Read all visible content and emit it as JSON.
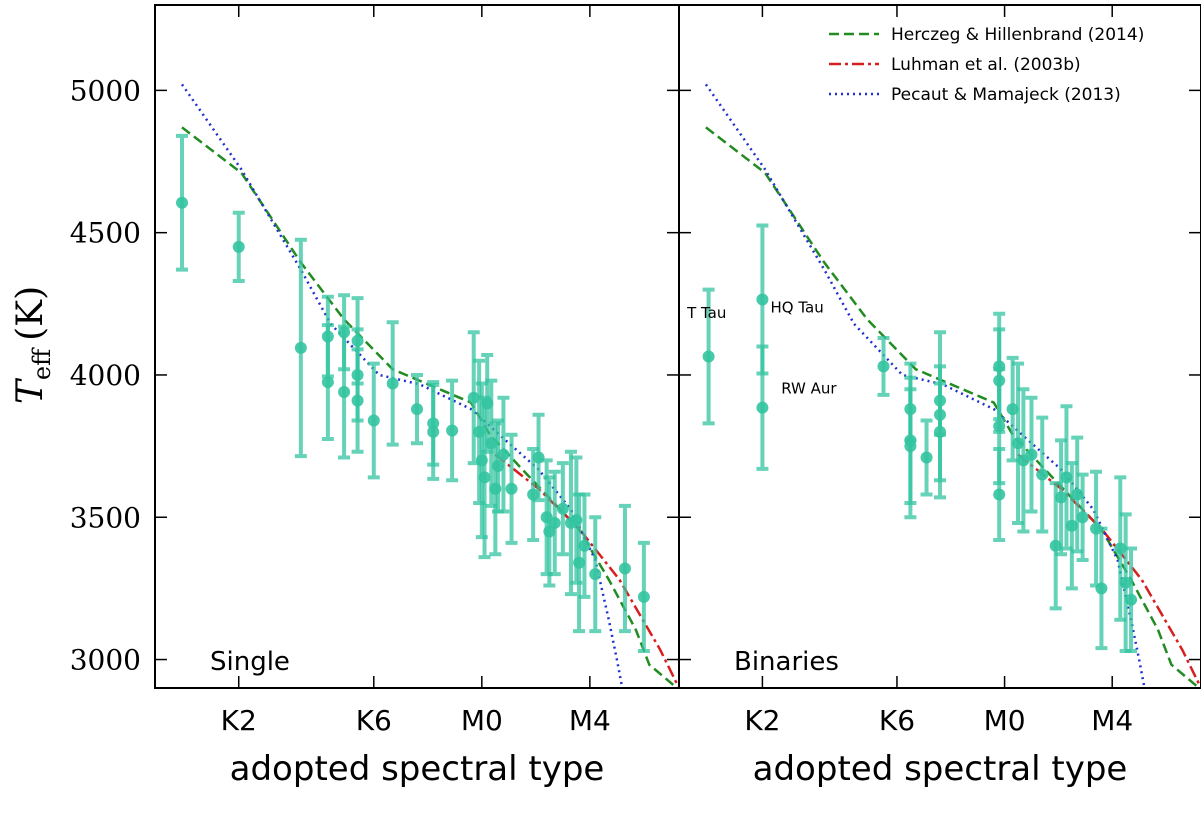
{
  "chart_data": [
    {
      "type": "scatter",
      "annotation": "Single",
      "x_label": "adopted spectral type",
      "y_label": {
        "symbol": "T",
        "subscript": "eff",
        "unit": "(K)"
      },
      "xlim": [
        -12.1,
        7.3
      ],
      "ylim": [
        2900,
        5300
      ],
      "xticks": [
        {
          "value": -9,
          "label": "K2"
        },
        {
          "value": -4,
          "label": "K6"
        },
        {
          "value": 0,
          "label": "M0"
        },
        {
          "value": 4,
          "label": "M4"
        }
      ],
      "yticks": [
        3000,
        3500,
        4000,
        4500,
        5000
      ],
      "points": {
        "color": "#33c4a0",
        "x": [
          -11.1,
          -9,
          -6.7,
          -5.7,
          -5.7,
          -5.1,
          -5.1,
          -4.6,
          -4.6,
          -4.6,
          -4.0,
          -3.3,
          -2.4,
          -1.8,
          -1.8,
          -1.1,
          -0.3,
          -0.1,
          0,
          0.1,
          0.2,
          0.35,
          0.5,
          0.6,
          0.8,
          1.1,
          1.9,
          2.1,
          2.4,
          2.5,
          2.7,
          3.0,
          3.3,
          3.5,
          3.6,
          3.8,
          4.2,
          5.3,
          6.0
        ],
        "values": [
          4605,
          4450,
          4095,
          4135,
          3975,
          4150,
          3940,
          4120,
          4000,
          3910,
          3840,
          3970,
          3880,
          3830,
          3800,
          3805,
          3920,
          3800,
          3700,
          3640,
          3900,
          3760,
          3600,
          3680,
          3720,
          3600,
          3580,
          3710,
          3500,
          3450,
          3480,
          3530,
          3480,
          3490,
          3340,
          3400,
          3300,
          3320,
          3220
        ],
        "errors": [
          235,
          120,
          380,
          140,
          200,
          130,
          230,
          150,
          160,
          180,
          200,
          215,
          120,
          145,
          165,
          175,
          230,
          250,
          270,
          280,
          170,
          220,
          230,
          160,
          200,
          190,
          160,
          150,
          200,
          190,
          180,
          160,
          250,
          220,
          240,
          180,
          200,
          220,
          190
        ]
      },
      "series": [
        {
          "color": "#228b22",
          "style": "dashed",
          "x": [
            -11.1,
            -8.9,
            -6.7,
            -5.1,
            -3.3,
            -0.4,
            0.3,
            1.5,
            3.6,
            4.7,
            5.7,
            6.2,
            7.3
          ],
          "values": [
            4870,
            4710,
            4395,
            4195,
            4020,
            3903,
            3790,
            3668,
            3457,
            3281,
            3105,
            2982,
            2894
          ]
        },
        {
          "color": "#d62020",
          "style": "dashdot",
          "x": [
            0.5,
            2.1,
            3.6,
            5.1,
            6.6,
            7.3
          ],
          "values": [
            3720,
            3600,
            3460,
            3280,
            3035,
            2900
          ]
        },
        {
          "color": "#2030d0",
          "style": "dotted",
          "x": [
            -11.1,
            -8.9,
            -6.7,
            -5.6,
            -3.8,
            -2.3,
            -0.4,
            0.85,
            2.1,
            3.3,
            4.2,
            4.7,
            5.0,
            5.2
          ],
          "values": [
            5021,
            4722,
            4370,
            4180,
            4000,
            3967,
            3880,
            3773,
            3668,
            3527,
            3350,
            3140,
            3000,
            2900
          ]
        }
      ]
    },
    {
      "type": "scatter",
      "annotation": "Binaries",
      "x_label": "adopted spectral type",
      "xlim": [
        -12.1,
        7.3
      ],
      "ylim": [
        2900,
        5300
      ],
      "xticks": [
        {
          "value": -9,
          "label": "K2"
        },
        {
          "value": -4,
          "label": "K6"
        },
        {
          "value": 0,
          "label": "M0"
        },
        {
          "value": 4,
          "label": "M4"
        }
      ],
      "yticks": [
        3000,
        3500,
        4000,
        4500,
        5000
      ],
      "points": {
        "color": "#33c4a0",
        "x": [
          -11.0,
          -9,
          -9,
          -4.5,
          -3.5,
          -3.5,
          -3.5,
          -2.9,
          -2.4,
          -2.4,
          -2.4,
          -0.2,
          -0.2,
          -0.2,
          -0.2,
          0.3,
          0.5,
          0.7,
          1.0,
          1.4,
          1.9,
          2.1,
          2.3,
          2.5,
          2.7,
          2.9,
          3.4,
          3.6,
          4.3,
          4.5,
          4.7
        ],
        "values": [
          4065,
          4265,
          3885,
          4030,
          3880,
          3770,
          3750,
          3710,
          3910,
          3860,
          3800,
          4030,
          3980,
          3820,
          3580,
          3880,
          3760,
          3700,
          3720,
          3650,
          3400,
          3570,
          3640,
          3470,
          3580,
          3500,
          3460,
          3250,
          3390,
          3270,
          3210
        ],
        "errors": [
          235,
          260,
          215,
          100,
          110,
          270,
          200,
          130,
          120,
          290,
          170,
          185,
          180,
          200,
          160,
          180,
          280,
          250,
          200,
          200,
          220,
          200,
          250,
          220,
          200,
          150,
          200,
          210,
          250,
          240,
          180
        ]
      },
      "annotations": [
        {
          "text": "T Tau",
          "x": -11.8,
          "y": 4200
        },
        {
          "text": "HQ Tau",
          "x": -8.7,
          "y": 4220
        },
        {
          "text": "RW Aur",
          "x": -8.3,
          "y": 3935
        }
      ],
      "legend": "upper right",
      "series": [
        {
          "name": "Herczeg & Hillenbrand (2014)",
          "color": "#228b22",
          "style": "dashed",
          "x": [
            -11.1,
            -8.9,
            -6.7,
            -5.1,
            -3.3,
            -0.4,
            0.3,
            1.5,
            3.6,
            4.7,
            5.7,
            6.2,
            7.3
          ],
          "values": [
            4870,
            4710,
            4395,
            4195,
            4020,
            3903,
            3790,
            3668,
            3457,
            3281,
            3105,
            2982,
            2894
          ]
        },
        {
          "name": "Luhman et al. (2003b)",
          "color": "#d62020",
          "style": "dashdot",
          "x": [
            0.5,
            2.1,
            3.6,
            5.1,
            6.6,
            7.3
          ],
          "values": [
            3720,
            3600,
            3460,
            3280,
            3035,
            2900
          ]
        },
        {
          "name": "Pecaut & Mamajeck (2013)",
          "color": "#2030d0",
          "style": "dotted",
          "x": [
            -11.1,
            -8.9,
            -6.7,
            -5.6,
            -3.8,
            -2.3,
            -0.4,
            0.85,
            2.1,
            3.3,
            4.2,
            4.7,
            5.0,
            5.2
          ],
          "values": [
            5021,
            4722,
            4370,
            4180,
            4000,
            3967,
            3880,
            3773,
            3668,
            3527,
            3350,
            3140,
            3000,
            2900
          ]
        }
      ]
    }
  ]
}
